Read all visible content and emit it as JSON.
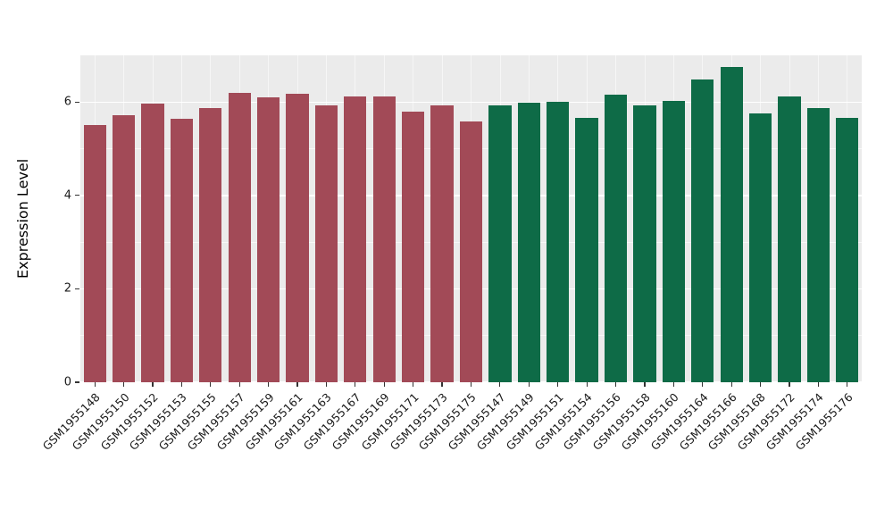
{
  "chart_data": {
    "type": "bar",
    "title": "",
    "xlabel": "",
    "ylabel": "Expression Level",
    "ylim": [
      0,
      7
    ],
    "yticks": [
      0,
      2,
      4,
      6
    ],
    "yticks_minor": [
      1,
      3,
      5
    ],
    "legend": "none",
    "grid": "on",
    "plot_background": "#EBEBEB",
    "gridline_color": "#FFFFFF",
    "groups": [
      {
        "name": "group-red",
        "color": "#A24A57",
        "items": [
          {
            "label": "GSM1955148",
            "value": 5.51
          },
          {
            "label": "GSM1955150",
            "value": 5.72
          },
          {
            "label": "GSM1955152",
            "value": 5.97
          },
          {
            "label": "GSM1955153",
            "value": 5.65
          },
          {
            "label": "GSM1955155",
            "value": 5.88
          },
          {
            "label": "GSM1955157",
            "value": 6.2
          },
          {
            "label": "GSM1955159",
            "value": 6.1
          },
          {
            "label": "GSM1955161",
            "value": 6.18
          },
          {
            "label": "GSM1955163",
            "value": 5.93
          },
          {
            "label": "GSM1955167",
            "value": 6.13
          },
          {
            "label": "GSM1955169",
            "value": 6.12
          },
          {
            "label": "GSM1955171",
            "value": 5.8
          },
          {
            "label": "GSM1955173",
            "value": 5.93
          },
          {
            "label": "GSM1955175",
            "value": 5.58
          }
        ]
      },
      {
        "name": "group-green",
        "color": "#0E6B47",
        "items": [
          {
            "label": "GSM1955147",
            "value": 5.93
          },
          {
            "label": "GSM1955149",
            "value": 5.99
          },
          {
            "label": "GSM1955151",
            "value": 6.01
          },
          {
            "label": "GSM1955154",
            "value": 5.67
          },
          {
            "label": "GSM1955156",
            "value": 6.15
          },
          {
            "label": "GSM1955158",
            "value": 5.93
          },
          {
            "label": "GSM1955160",
            "value": 6.03
          },
          {
            "label": "GSM1955164",
            "value": 6.48
          },
          {
            "label": "GSM1955166",
            "value": 6.75
          },
          {
            "label": "GSM1955168",
            "value": 5.75
          },
          {
            "label": "GSM1955172",
            "value": 6.12
          },
          {
            "label": "GSM1955174",
            "value": 5.88
          },
          {
            "label": "GSM1955176",
            "value": 5.67
          }
        ]
      }
    ]
  }
}
